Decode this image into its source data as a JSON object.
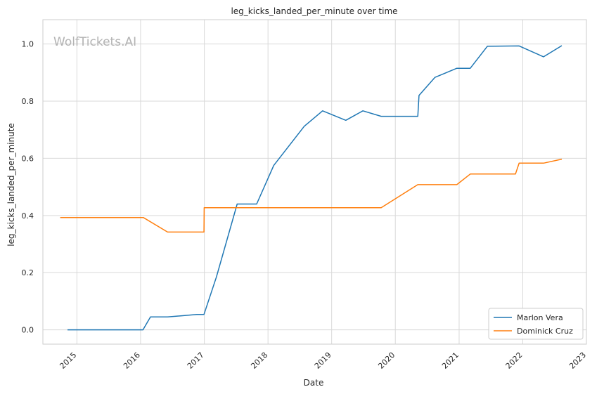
{
  "chart_data": {
    "type": "line",
    "title": "leg_kicks_landed_per_minute over time",
    "xlabel": "Date",
    "ylabel": "leg_kicks_landed_per_minute",
    "watermark": "WolfTickets.AI",
    "xlim": [
      "2014-06-20",
      "2023-01-01"
    ],
    "ylim": [
      -0.05,
      1.085
    ],
    "x_ticks": [
      "2015",
      "2016",
      "2017",
      "2018",
      "2019",
      "2020",
      "2021",
      "2022",
      "2023"
    ],
    "y_ticks": [
      "0.0",
      "0.2",
      "0.4",
      "0.6",
      "0.8",
      "1.0"
    ],
    "grid": true,
    "legend_position": "lower right",
    "series": [
      {
        "name": "Marlon Vera",
        "color": "#1f77b4",
        "points": [
          [
            "2014-11-08",
            0.0
          ],
          [
            "2016-01-15",
            0.0
          ],
          [
            "2016-02-27",
            0.045
          ],
          [
            "2016-06-04",
            0.045
          ],
          [
            "2016-11-19",
            0.054
          ],
          [
            "2016-12-30",
            0.054
          ],
          [
            "2017-03-11",
            0.185
          ],
          [
            "2017-07-08",
            0.44
          ],
          [
            "2017-10-28",
            0.44
          ],
          [
            "2018-02-03",
            0.575
          ],
          [
            "2018-07-28",
            0.712
          ],
          [
            "2018-11-10",
            0.766
          ],
          [
            "2019-03-23",
            0.733
          ],
          [
            "2019-06-29",
            0.766
          ],
          [
            "2019-10-12",
            0.747
          ],
          [
            "2020-05-09",
            0.747
          ],
          [
            "2020-05-16",
            0.82
          ],
          [
            "2020-08-15",
            0.883
          ],
          [
            "2020-12-19",
            0.915
          ],
          [
            "2021-03-06",
            0.915
          ],
          [
            "2021-06-12",
            0.992
          ],
          [
            "2021-12-11",
            0.993
          ],
          [
            "2022-04-30",
            0.955
          ],
          [
            "2022-08-13",
            0.994
          ]
        ]
      },
      {
        "name": "Dominick Cruz",
        "color": "#ff7f0e",
        "points": [
          [
            "2014-09-27",
            0.393
          ],
          [
            "2016-01-17",
            0.393
          ],
          [
            "2016-06-04",
            0.342
          ],
          [
            "2016-12-30",
            0.342
          ],
          [
            "2016-12-31",
            0.427
          ],
          [
            "2019-10-12",
            0.427
          ],
          [
            "2020-05-09",
            0.508
          ],
          [
            "2020-12-19",
            0.508
          ],
          [
            "2021-03-06",
            0.545
          ],
          [
            "2021-11-20",
            0.545
          ],
          [
            "2021-12-11",
            0.583
          ],
          [
            "2022-04-30",
            0.583
          ],
          [
            "2022-08-13",
            0.597
          ]
        ]
      }
    ]
  }
}
